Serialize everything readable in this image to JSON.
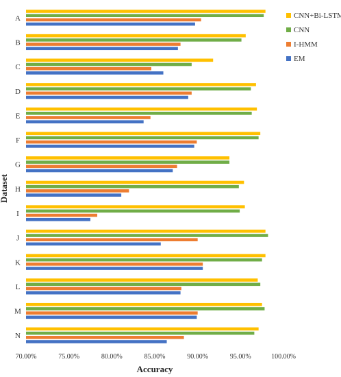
{
  "chart_data": {
    "type": "bar",
    "orientation": "horizontal",
    "xlabel": "Accuracy",
    "ylabel": "Dataset",
    "xlim": [
      0.7,
      1.0
    ],
    "xticks": [
      "70.00%",
      "75.00%",
      "80.00%",
      "85.00%",
      "90.00%",
      "95.00%",
      "100.00%"
    ],
    "xtick_values": [
      0.7,
      0.75,
      0.8,
      0.85,
      0.9,
      0.95,
      1.0
    ],
    "grid": false,
    "legend_position": "right",
    "categories": [
      "A",
      "B",
      "C",
      "D",
      "E",
      "F",
      "G",
      "H",
      "I",
      "J",
      "K",
      "L",
      "M",
      "N"
    ],
    "series": [
      {
        "name": "CNN+Bi-LSTM",
        "color": "#FFC000",
        "values": [
          0.979,
          0.956,
          0.918,
          0.968,
          0.969,
          0.973,
          0.937,
          0.954,
          0.955,
          0.979,
          0.979,
          0.97,
          0.975,
          0.971
        ]
      },
      {
        "name": "CNN",
        "color": "#70AD47",
        "values": [
          0.977,
          0.951,
          0.893,
          0.962,
          0.963,
          0.971,
          0.937,
          0.948,
          0.949,
          0.982,
          0.975,
          0.973,
          0.978,
          0.966
        ]
      },
      {
        "name": "I-HMM",
        "color": "#ED7D31",
        "values": [
          0.904,
          0.88,
          0.846,
          0.893,
          0.845,
          0.899,
          0.876,
          0.82,
          0.783,
          0.9,
          0.906,
          0.881,
          0.9,
          0.884
        ]
      },
      {
        "name": "EM",
        "color": "#4472C4",
        "values": [
          0.897,
          0.877,
          0.86,
          0.889,
          0.837,
          0.896,
          0.871,
          0.811,
          0.775,
          0.857,
          0.906,
          0.88,
          0.899,
          0.864
        ]
      }
    ]
  }
}
